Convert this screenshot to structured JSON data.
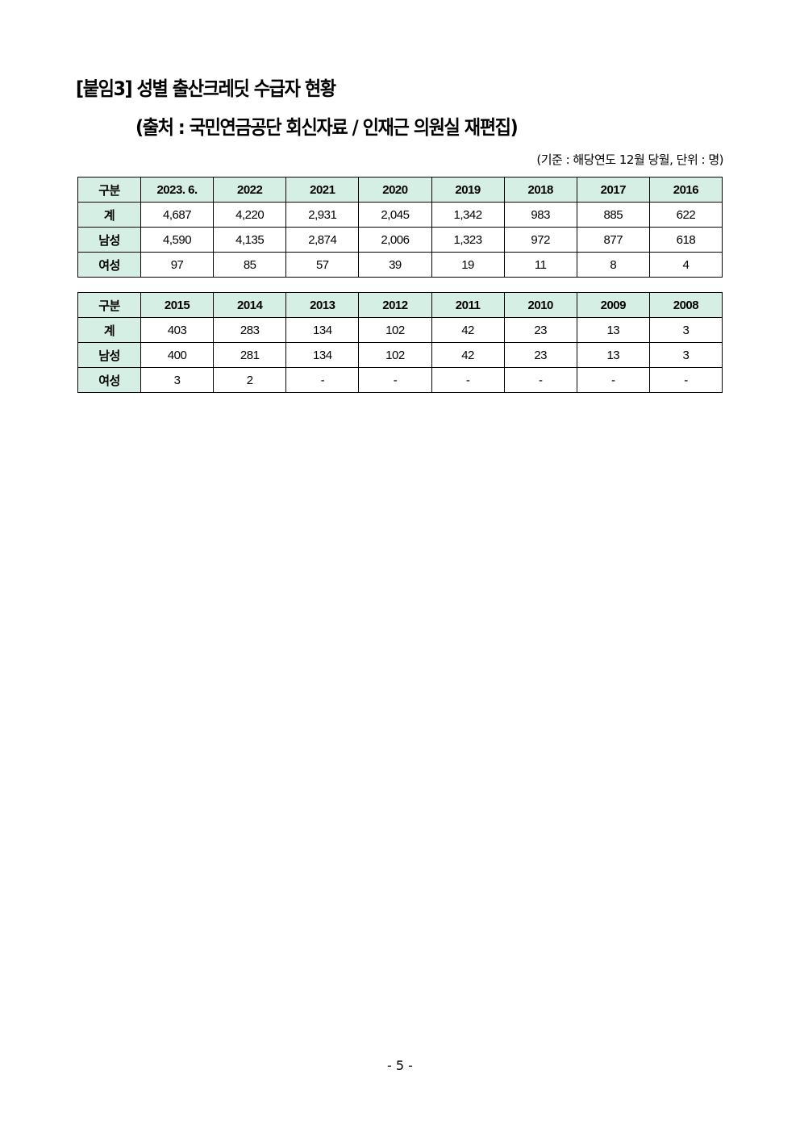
{
  "title": "[붙임3] 성별 출산크레딧 수급자 현황",
  "subtitle": "(출처 : 국민연금공단 회신자료 / 인재근 의원실 재편집)",
  "note": "(기준 : 해당연도 12월 당월, 단위 : 명)",
  "tables": [
    {
      "header": [
        "구분",
        "2023. 6.",
        "2022",
        "2021",
        "2020",
        "2019",
        "2018",
        "2017",
        "2016"
      ],
      "rows": [
        [
          "계",
          "4,687",
          "4,220",
          "2,931",
          "2,045",
          "1,342",
          "983",
          "885",
          "622"
        ],
        [
          "남성",
          "4,590",
          "4,135",
          "2,874",
          "2,006",
          "1,323",
          "972",
          "877",
          "618"
        ],
        [
          "여성",
          "97",
          "85",
          "57",
          "39",
          "19",
          "11",
          "8",
          "4"
        ]
      ]
    },
    {
      "header": [
        "구분",
        "2015",
        "2014",
        "2013",
        "2012",
        "2011",
        "2010",
        "2009",
        "2008"
      ],
      "rows": [
        [
          "계",
          "403",
          "283",
          "134",
          "102",
          "42",
          "23",
          "13",
          "3"
        ],
        [
          "남성",
          "400",
          "281",
          "134",
          "102",
          "42",
          "23",
          "13",
          "3"
        ],
        [
          "여성",
          "3",
          "2",
          "-",
          "-",
          "-",
          "-",
          "-",
          "-"
        ]
      ]
    }
  ],
  "page_number": "- 5 -",
  "colors": {
    "header_bg": "#d5efe4"
  }
}
